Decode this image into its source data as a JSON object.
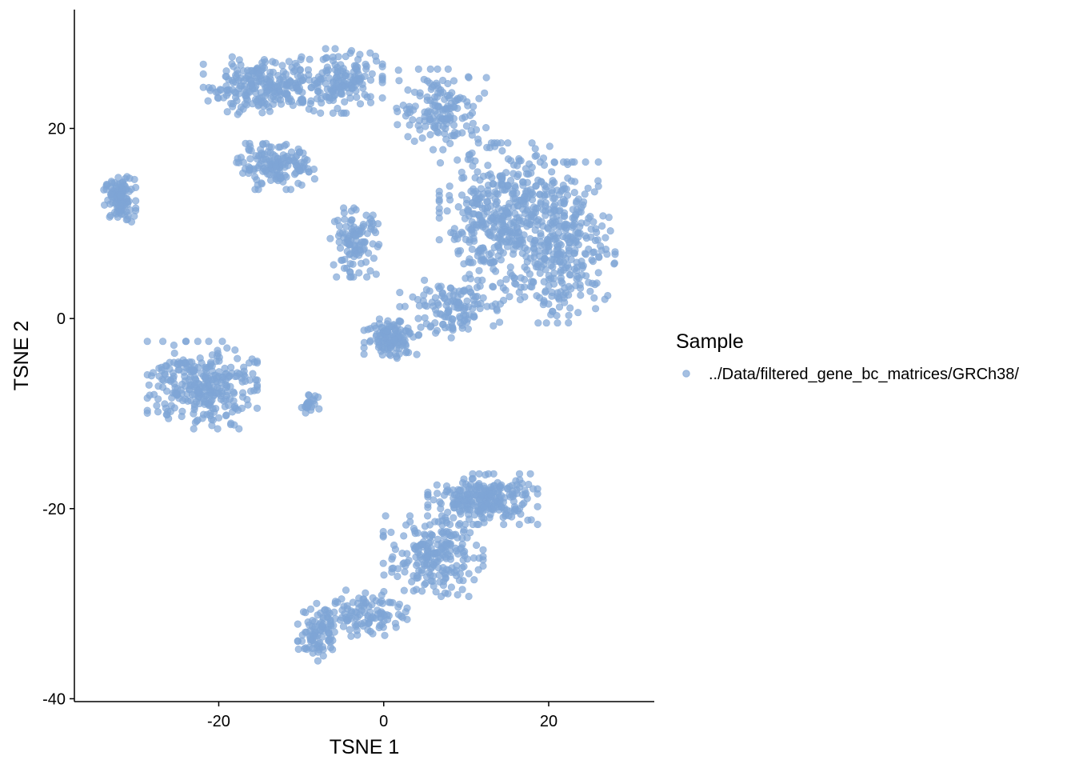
{
  "chart_data": {
    "type": "scatter",
    "title": "",
    "xlabel": "TSNE 1",
    "ylabel": "TSNE 2",
    "xlim": [
      -37.5,
      32.8
    ],
    "ylim": [
      -40.3,
      32.5
    ],
    "x_ticks": [
      -20,
      0,
      20
    ],
    "y_ticks": [
      -40,
      -20,
      0,
      20
    ],
    "grid": false,
    "legend": {
      "title": "Sample",
      "placement": "right",
      "entries": [
        "../Data/filtered_gene_bc_matrices/GRCh38/"
      ]
    },
    "point_color": "#7fa5d5",
    "point_alpha": 0.7,
    "series": [
      {
        "name": "../Data/filtered_gene_bc_matrices/GRCh38/",
        "clusters": [
          {
            "center": [
              -32,
              12.5
            ],
            "spread": [
              1.6,
              2.0
            ],
            "count": 110
          },
          {
            "center": [
              -14,
              24.5
            ],
            "spread": [
              6.5,
              2.5
            ],
            "count": 260
          },
          {
            "center": [
              -5,
              25
            ],
            "spread": [
              4.0,
              2.8
            ],
            "count": 140
          },
          {
            "center": [
              -13,
              16
            ],
            "spread": [
              4.0,
              2.0
            ],
            "count": 150
          },
          {
            "center": [
              -3.5,
              8
            ],
            "spread": [
              2.5,
              3.0
            ],
            "count": 110
          },
          {
            "center": [
              1,
              -2
            ],
            "spread": [
              2.8,
              1.8
            ],
            "count": 120
          },
          {
            "center": [
              7,
              22
            ],
            "spread": [
              4.5,
              3.5
            ],
            "count": 150
          },
          {
            "center": [
              14,
              10
            ],
            "spread": [
              6.0,
              7.0
            ],
            "count": 420
          },
          {
            "center": [
              22,
              8
            ],
            "spread": [
              5.0,
              7.0
            ],
            "count": 320
          },
          {
            "center": [
              8,
              1
            ],
            "spread": [
              5.0,
              2.5
            ],
            "count": 120
          },
          {
            "center": [
              -22,
              -7
            ],
            "spread": [
              5.5,
              3.8
            ],
            "count": 300
          },
          {
            "center": [
              -9,
              -9
            ],
            "spread": [
              1.0,
              0.8
            ],
            "count": 25
          },
          {
            "center": [
              12,
              -19
            ],
            "spread": [
              5.5,
              2.2
            ],
            "count": 250
          },
          {
            "center": [
              6,
              -25
            ],
            "spread": [
              5.0,
              3.5
            ],
            "count": 220
          },
          {
            "center": [
              -2,
              -31
            ],
            "spread": [
              4.0,
              2.0
            ],
            "count": 110
          },
          {
            "center": [
              -8,
              -33
            ],
            "spread": [
              2.0,
              2.5
            ],
            "count": 90
          }
        ]
      }
    ]
  }
}
